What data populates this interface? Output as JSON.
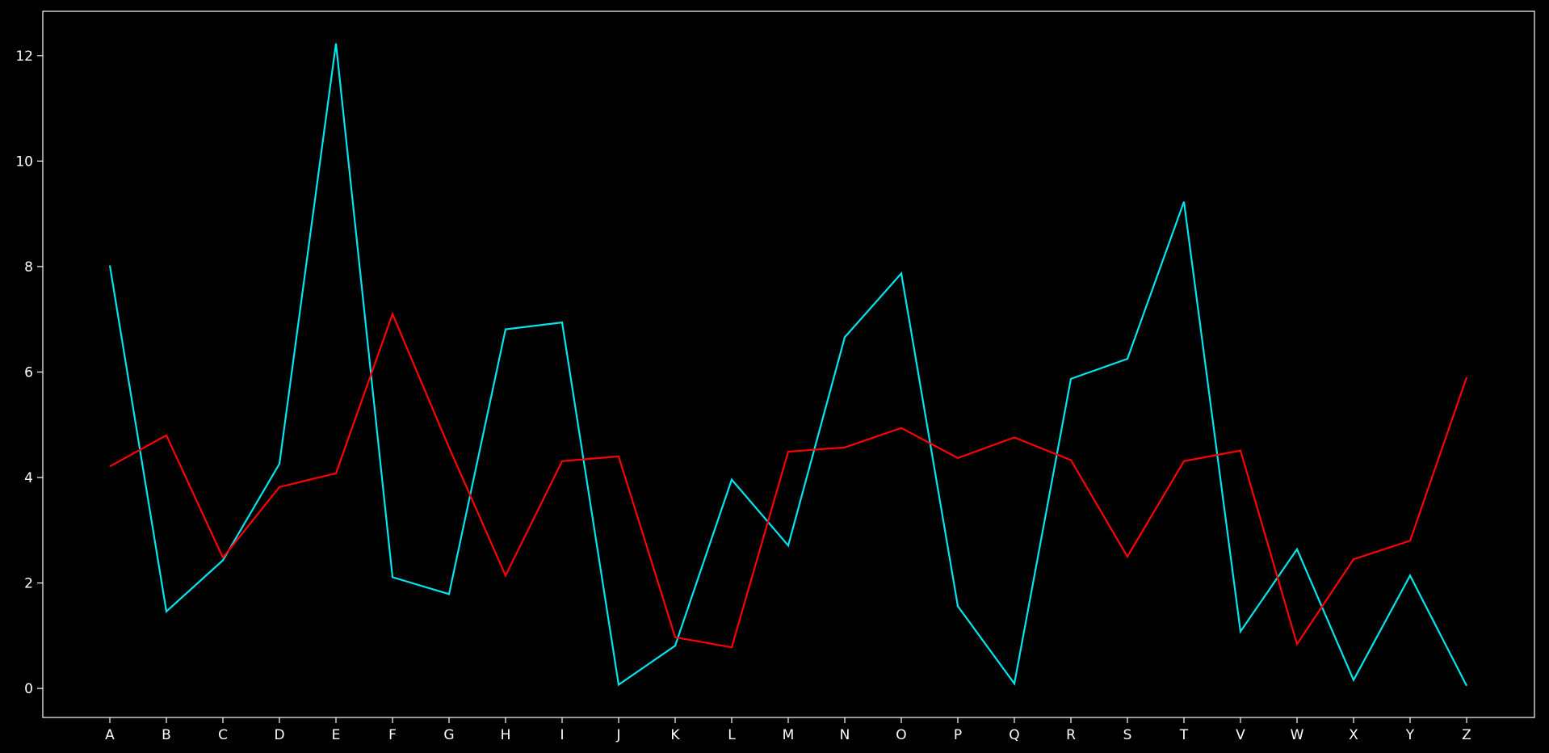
{
  "chart_data": {
    "type": "line",
    "categories": [
      "A",
      "B",
      "C",
      "D",
      "E",
      "F",
      "G",
      "H",
      "I",
      "J",
      "K",
      "L",
      "M",
      "N",
      "O",
      "P",
      "Q",
      "R",
      "S",
      "T",
      "V",
      "W",
      "X",
      "Y",
      "Z"
    ],
    "series": [
      {
        "color": "#00e5ee",
        "values": [
          8.02,
          1.46,
          2.43,
          4.26,
          12.23,
          2.11,
          1.79,
          6.81,
          6.94,
          0.07,
          0.81,
          3.96,
          2.71,
          6.66,
          7.87,
          1.56,
          0.09,
          5.87,
          6.25,
          9.23,
          1.08,
          2.64,
          0.16,
          2.14,
          0.05
        ]
      },
      {
        "color": "#ff0000",
        "values": [
          4.21,
          4.8,
          2.48,
          3.82,
          4.08,
          7.1,
          4.57,
          2.14,
          4.31,
          4.4,
          0.97,
          0.78,
          4.49,
          4.57,
          4.94,
          4.37,
          4.76,
          4.33,
          2.5,
          4.31,
          4.51,
          0.84,
          2.45,
          2.8,
          5.9
        ]
      }
    ],
    "yticks": [
      0,
      2,
      4,
      6,
      8,
      10,
      12
    ],
    "ylim": [
      -0.55,
      12.84
    ],
    "xlabel": "",
    "ylabel": "",
    "title": "",
    "grid": false,
    "legend": "none",
    "colors": {
      "background": "#000000",
      "axes": "#ffffff",
      "text": "#ffffff"
    }
  }
}
